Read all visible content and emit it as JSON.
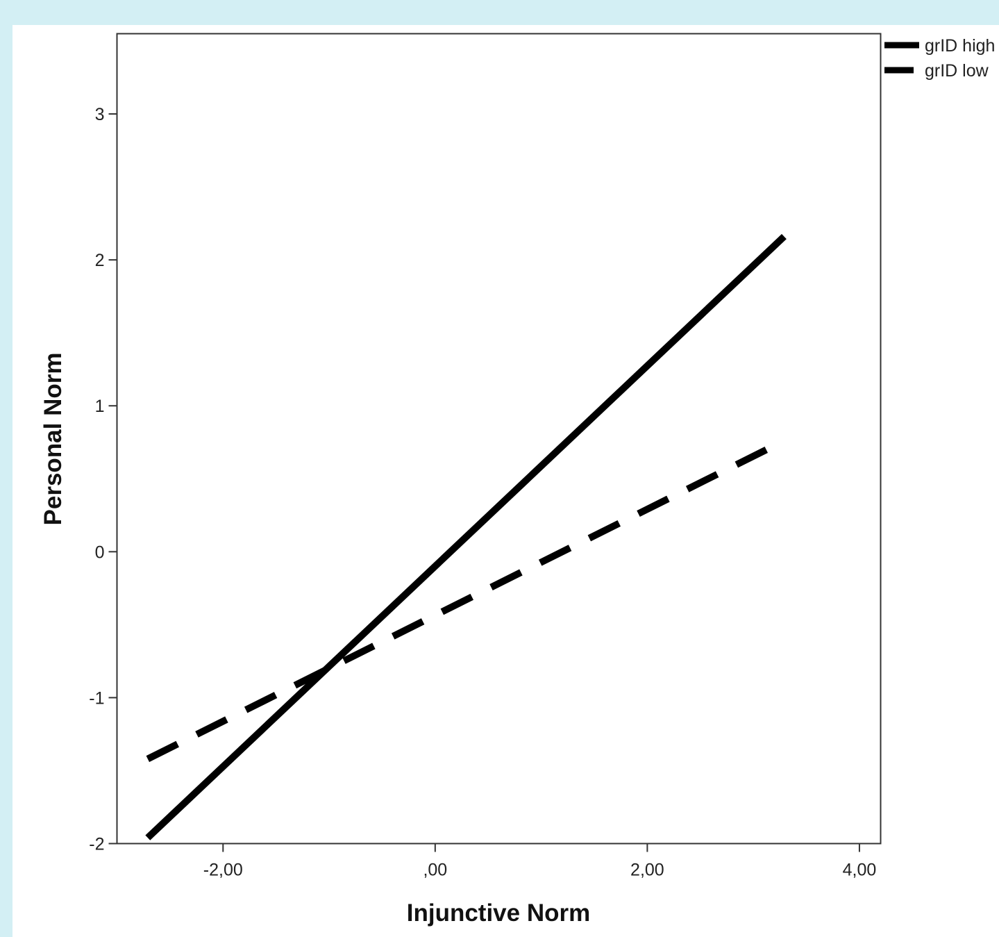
{
  "chart_data": {
    "type": "line",
    "title": "",
    "xlabel": "Injunctive Norm",
    "ylabel": "Personal Norm",
    "xlim": [
      -3.0,
      4.2
    ],
    "ylim": [
      -2.0,
      3.55
    ],
    "x_ticks": [
      {
        "value": -2,
        "label": "-2,00"
      },
      {
        "value": 0,
        "label": ",00"
      },
      {
        "value": 2,
        "label": "2,00"
      },
      {
        "value": 4,
        "label": "4,00"
      }
    ],
    "y_ticks": [
      {
        "value": -2,
        "label": "-2"
      },
      {
        "value": -1,
        "label": "-1"
      },
      {
        "value": 0,
        "label": "0"
      },
      {
        "value": 1,
        "label": "1"
      },
      {
        "value": 2,
        "label": "2"
      },
      {
        "value": 3,
        "label": "3"
      }
    ],
    "grid": false,
    "legend_position": "top-right outside",
    "series": [
      {
        "name": "grID high",
        "style": "solid",
        "color": "#000000",
        "x": [
          -2.71,
          3.29
        ],
        "y": [
          -1.96,
          2.16
        ]
      },
      {
        "name": "grID low",
        "style": "dashed",
        "color": "#000000",
        "x": [
          -2.71,
          3.29
        ],
        "y": [
          -1.42,
          0.76
        ]
      }
    ]
  }
}
